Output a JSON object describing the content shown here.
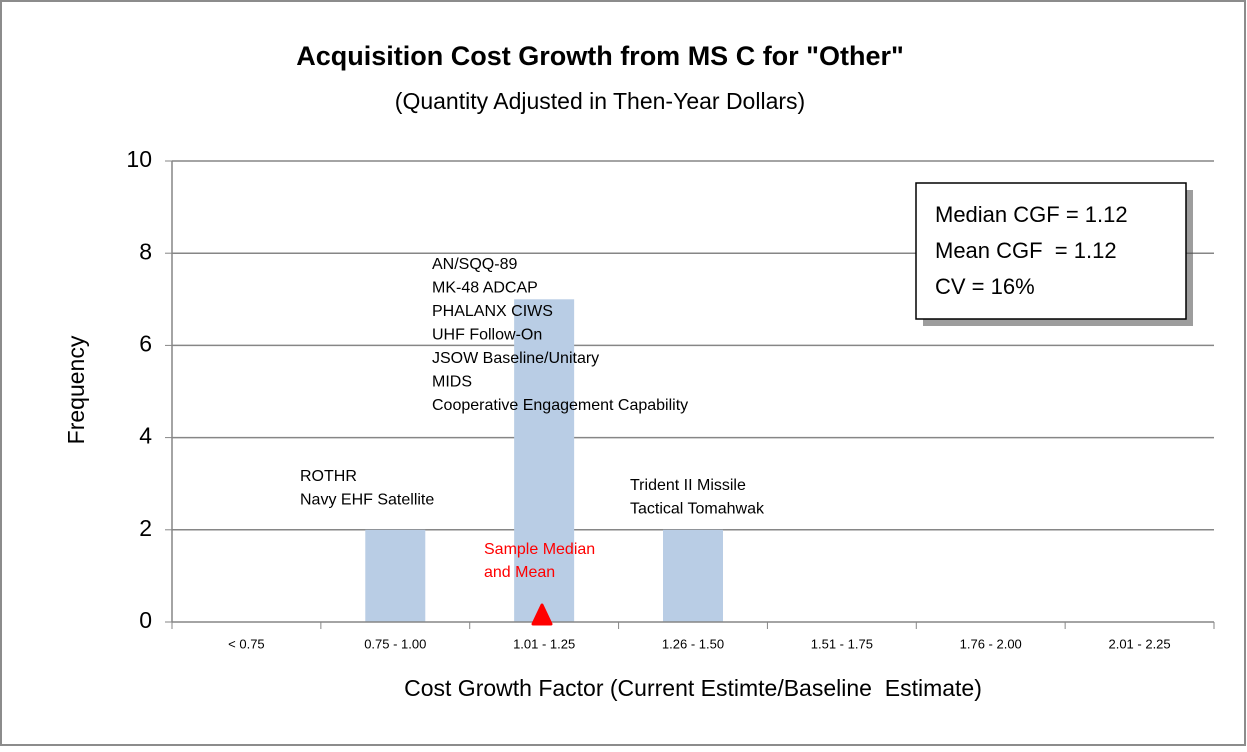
{
  "chart_data": {
    "type": "bar",
    "title": "Acquisition Cost Growth from MS C for \"Other\"",
    "subtitle": "(Quantity Adjusted in Then-Year Dollars)",
    "x_label": "Cost Growth Factor (Current Estimte/Baseline  Estimate)",
    "y_label": "Frequency",
    "categories": [
      "< 0.75",
      "0.75 - 1.00",
      "1.01 - 1.25",
      "1.26 - 1.50",
      "1.51 - 1.75",
      "1.76 - 2.00",
      "2.01 - 2.25"
    ],
    "values": [
      0,
      2,
      7,
      2,
      0,
      0,
      0
    ],
    "color": "#b9cde5",
    "ylim": [
      0,
      10
    ],
    "yticks": [
      0,
      2,
      4,
      6,
      8,
      10
    ],
    "grid": true,
    "bar_notes": [
      [],
      [
        "ROTHR",
        "Navy EHF Satellite"
      ],
      [
        "AN/SQQ-89",
        "MK-48 ADCAP",
        "PHALANX CIWS",
        "UHF Follow-On",
        "JSOW Baseline/Unitary",
        "MIDS",
        "Cooperative Engagement Capability"
      ],
      [
        "Trident II Missile",
        "Tactical Tomahwak"
      ],
      [],
      [],
      []
    ],
    "marker_label": [
      "Sample Median",
      "and Mean"
    ],
    "stats": [
      "Median CGF = 1.12",
      "Mean CGF  = 1.12",
      "CV = 16%"
    ]
  }
}
